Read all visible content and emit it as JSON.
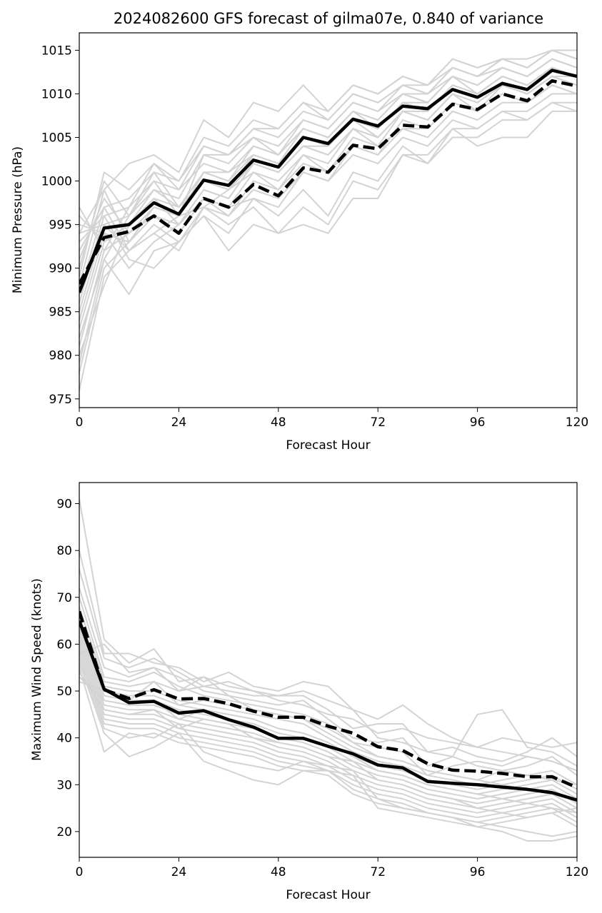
{
  "title": "2024082600 GFS forecast of gilma07e, 0.840 of variance",
  "colors": {
    "members": "#d3d3d3",
    "highlight": "#000000"
  },
  "chart_data": [
    {
      "type": "line",
      "xlabel": "Forecast Hour",
      "ylabel": "Minimum Pressure (hPa)",
      "xlim": [
        0,
        120
      ],
      "ylim": [
        974,
        1017
      ],
      "xticks": [
        0,
        24,
        48,
        72,
        96,
        120
      ],
      "yticks": [
        975,
        980,
        985,
        990,
        995,
        1000,
        1005,
        1010,
        1015
      ],
      "x": [
        0,
        6,
        12,
        18,
        24,
        30,
        36,
        42,
        48,
        54,
        60,
        66,
        72,
        78,
        84,
        90,
        96,
        102,
        108,
        114,
        120
      ],
      "series": [
        {
          "style": "solid",
          "values": [
            987.2,
            994.6,
            995,
            997.5,
            996.2,
            1000.1,
            999.5,
            1002.4,
            1001.6,
            1005,
            1004.3,
            1007.1,
            1006.3,
            1008.6,
            1008.3,
            1010.5,
            1009.6,
            1011.2,
            1010.5,
            1012.7,
            1012
          ]
        },
        {
          "style": "dashed",
          "values": [
            988.2,
            993.5,
            994.2,
            996,
            994,
            998,
            997,
            999.6,
            998.3,
            1001.5,
            1001,
            1004.1,
            1003.7,
            1006.4,
            1006.2,
            1008.8,
            1008.2,
            1010,
            1009.2,
            1011.5,
            1010.9
          ]
        }
      ],
      "members": [
        [
          976,
          989,
          992,
          994,
          996,
          997,
          999,
          1001,
          1000,
          1003,
          1001,
          1004,
          1003,
          1006,
          1005,
          1008,
          1007,
          1009,
          1009,
          1011,
          1010
        ],
        [
          978,
          990,
          993,
          996,
          995,
          999,
          998,
          1002,
          1001,
          1004,
          1003,
          1006,
          1005,
          1008,
          1007,
          1010,
          1009,
          1011,
          1010,
          1012,
          1011
        ],
        [
          979,
          991,
          987,
          992,
          993,
          997,
          996,
          999,
          998,
          1001,
          1000,
          1003,
          1002,
          1005,
          1004,
          1007,
          1006,
          1008,
          1008,
          1010,
          1010
        ],
        [
          981,
          992,
          994,
          997,
          996,
          1000,
          999,
          1003,
          1002,
          1005,
          1004,
          1007,
          1006,
          1009,
          1008,
          1011,
          1010,
          1012,
          1011,
          1013,
          1012
        ],
        [
          983,
          993,
          995,
          998,
          997,
          1001,
          1000,
          1004,
          1003,
          1006,
          1005,
          1008,
          1007,
          1010,
          1009,
          1012,
          1011,
          1013,
          1012,
          1014,
          1013
        ],
        [
          984,
          994,
          990,
          993,
          995,
          998,
          997,
          1001,
          999,
          1002,
          1001,
          1005,
          1004,
          1006,
          1006,
          1009,
          1008,
          1010,
          1009,
          1011,
          1010
        ],
        [
          985,
          995,
          996,
          999,
          998,
          1003,
          1002,
          1005,
          1004,
          1007,
          1006,
          1009,
          1008,
          1011,
          1010,
          1013,
          1012,
          1014,
          1013,
          1015,
          1014
        ],
        [
          986,
          996,
          997,
          1000,
          999,
          1004,
          1003,
          1006,
          1005,
          1008,
          1007,
          1010,
          1009,
          1011,
          1011,
          1013,
          1012,
          1014,
          1013,
          1015,
          1014
        ],
        [
          987,
          997,
          998,
          1001,
          1000,
          1005,
          1004,
          1007,
          1006,
          1009,
          1008,
          1011,
          1010,
          1012,
          1011,
          1014,
          1013,
          1014,
          1014,
          1015,
          1015
        ],
        [
          988,
          999,
          1002,
          1003,
          1001,
          1007,
          1005,
          1009,
          1008,
          1011,
          1008,
          1011,
          1010,
          1012,
          1011,
          1014,
          1013,
          1014,
          1013,
          1015,
          1014
        ],
        [
          989,
          1001,
          999,
          1002,
          1000,
          1004,
          1003,
          1006,
          1006,
          1009,
          1007,
          1010,
          1009,
          1011,
          1010,
          1013,
          1012,
          1013,
          1012,
          1014,
          1013
        ],
        [
          990,
          1000,
          996,
          1001,
          997,
          1001,
          1000,
          1003,
          1002,
          1006,
          1005,
          1008,
          1006,
          1009,
          1009,
          1012,
          1010,
          1012,
          1011,
          1013,
          1012
        ],
        [
          991,
          998,
          994,
          996,
          994,
          998,
          996,
          1000,
          999,
          1003,
          1002,
          1006,
          1004,
          1008,
          1007,
          1010,
          1008,
          1011,
          1010,
          1012,
          1011
        ],
        [
          992,
          997,
          992,
          995,
          993,
          996,
          994,
          998,
          997,
          1001,
          1000,
          1004,
          1003,
          1007,
          1006,
          1009,
          1008,
          1010,
          1009,
          1011,
          1010
        ],
        [
          993,
          996,
          991,
          990,
          993,
          996,
          992,
          995,
          994,
          997,
          995,
          1000,
          999,
          1003,
          1002,
          1005,
          1005,
          1007,
          1007,
          1009,
          1008
        ],
        [
          994,
          995,
          992,
          994,
          992,
          997,
          995,
          997,
          994,
          995,
          994,
          998,
          998,
          1003,
          1003,
          1006,
          1004,
          1005,
          1005,
          1008,
          1008
        ],
        [
          995,
          994,
          993,
          996,
          994,
          998,
          997,
          998,
          996,
          999,
          996,
          1001,
          1000,
          1004,
          1002,
          1006,
          1006,
          1008,
          1007,
          1009,
          1009
        ],
        [
          996,
          993,
          995,
          999,
          997,
          1000,
          999,
          1002,
          1001,
          1004,
          1003,
          1006,
          1005,
          1008,
          1007,
          1010,
          1009,
          1011,
          1010,
          1012,
          1012
        ],
        [
          997,
          992,
          997,
          1002,
          999,
          1002,
          1001,
          1004,
          1003,
          1006,
          1005,
          1008,
          1007,
          1010,
          1009,
          1012,
          1011,
          1013,
          1012,
          1014,
          1013
        ],
        [
          994,
          999,
          993,
          997,
          996,
          1001,
          1001,
          1003,
          1002,
          1005,
          1004,
          1007,
          1005,
          1008,
          1008,
          1011,
          1010,
          1012,
          1011,
          1013,
          1012
        ],
        [
          982,
          991,
          996,
          1000,
          996,
          1003,
          1003,
          1005,
          1003,
          1007,
          1006,
          1009,
          1008,
          1010,
          1010,
          1012,
          1011,
          1013,
          1012,
          1014,
          1013
        ],
        [
          980,
          988,
          995,
          998,
          995,
          999,
          998,
          1002,
          1001,
          1004,
          1004,
          1007,
          1006,
          1009,
          1008,
          1011,
          1010,
          1012,
          1011,
          1013,
          1012
        ]
      ]
    },
    {
      "type": "line",
      "xlabel": "Forecast Hour",
      "ylabel": "Maximum Wind Speed (knots)",
      "xlim": [
        0,
        120
      ],
      "ylim": [
        14.5,
        94.5
      ],
      "xticks": [
        0,
        24,
        48,
        72,
        96,
        120
      ],
      "yticks": [
        20,
        30,
        40,
        50,
        60,
        70,
        80,
        90
      ],
      "x": [
        0,
        6,
        12,
        18,
        24,
        30,
        36,
        42,
        48,
        54,
        60,
        66,
        72,
        78,
        84,
        90,
        96,
        102,
        108,
        114,
        120
      ],
      "series": [
        {
          "style": "solid",
          "values": [
            65,
            50.4,
            47.5,
            47.8,
            45.3,
            45.8,
            43.9,
            42.3,
            39.9,
            39.9,
            38.2,
            36.6,
            34.2,
            33.6,
            30.7,
            30.3,
            30,
            29.5,
            29,
            28.3,
            26.7
          ]
        },
        {
          "style": "dashed",
          "values": [
            67,
            50.3,
            48.4,
            50.3,
            48.3,
            48.4,
            47.3,
            45.7,
            44.4,
            44.4,
            42.5,
            41,
            38.1,
            37.3,
            34.5,
            33.1,
            32.9,
            32.4,
            31.7,
            31.7,
            29.4
          ]
        }
      ],
      "members": [
        [
          91,
          61,
          56,
          59,
          52,
          53,
          51,
          50,
          48,
          47,
          45,
          44,
          41,
          42,
          40,
          39,
          38,
          37,
          36,
          35,
          33
        ],
        [
          80,
          58,
          58,
          56,
          55,
          52,
          54,
          51,
          50,
          52,
          51,
          46,
          44,
          47,
          43,
          40,
          38,
          40,
          39,
          38,
          39
        ],
        [
          76,
          57,
          55,
          57,
          54,
          51,
          52,
          50,
          49,
          49,
          46,
          42,
          43,
          43,
          37,
          38,
          36,
          35,
          37,
          40,
          36
        ],
        [
          72,
          55,
          53,
          55,
          53,
          50,
          49,
          48,
          47,
          48,
          44,
          40,
          39,
          40,
          34,
          36,
          45,
          46,
          38,
          37,
          34
        ],
        [
          70,
          53,
          52,
          54,
          51,
          49,
          48,
          47,
          46,
          45,
          43,
          39,
          38,
          37,
          32,
          34,
          35,
          34,
          36,
          35,
          33
        ],
        [
          68,
          52,
          51,
          52,
          50,
          53,
          49,
          46,
          45,
          44,
          41,
          38,
          36,
          35,
          33,
          32,
          31,
          33,
          34,
          36,
          32
        ],
        [
          66,
          51,
          50,
          50,
          48,
          47,
          46,
          45,
          44,
          43,
          40,
          37,
          35,
          34,
          32,
          31,
          30,
          31,
          32,
          33,
          30
        ],
        [
          65,
          50,
          49,
          49,
          47,
          46,
          45,
          44,
          42,
          41,
          39,
          36,
          34,
          33,
          31,
          30,
          29,
          30,
          31,
          32,
          29
        ],
        [
          64,
          49,
          48,
          48,
          46,
          45,
          44,
          43,
          41,
          40,
          38,
          35,
          33,
          32,
          30,
          29,
          28,
          29,
          30,
          31,
          28
        ],
        [
          63,
          48,
          47,
          47,
          45,
          44,
          43,
          42,
          40,
          39,
          37,
          34,
          32,
          31,
          29,
          28,
          27,
          28,
          29,
          30,
          27
        ],
        [
          62,
          47,
          46,
          46,
          44,
          43,
          42,
          41,
          39,
          38,
          36,
          33,
          31,
          30,
          28,
          27,
          26,
          27,
          28,
          29,
          26
        ],
        [
          61,
          46,
          45,
          45,
          43,
          42,
          41,
          40,
          38,
          37,
          35,
          32,
          30,
          29,
          27,
          26,
          25,
          26,
          27,
          28,
          25
        ],
        [
          60,
          45,
          44,
          44,
          42,
          41,
          40,
          39,
          37,
          36,
          34,
          31,
          29,
          28,
          26,
          25,
          24,
          25,
          26,
          27,
          24
        ],
        [
          59,
          44,
          43,
          43,
          41,
          40,
          39,
          38,
          36,
          35,
          33,
          30,
          28,
          27,
          25,
          24,
          23,
          24,
          25,
          26,
          23
        ],
        [
          58,
          43,
          42,
          42,
          40,
          39,
          38,
          37,
          35,
          34,
          33,
          29,
          27,
          26,
          24,
          23,
          22,
          23,
          24,
          25,
          22
        ],
        [
          57,
          42,
          40,
          41,
          39,
          38,
          37,
          36,
          34,
          33,
          32,
          28,
          26,
          25,
          24,
          23,
          21,
          22,
          23,
          24,
          21
        ],
        [
          56,
          41,
          36,
          38,
          41,
          35,
          33,
          31,
          30,
          33,
          33,
          32,
          25,
          24,
          23,
          22,
          21,
          20,
          18,
          18,
          19
        ],
        [
          55,
          37,
          41,
          40,
          43,
          37,
          35,
          34,
          33,
          35,
          34,
          33,
          27,
          25,
          24,
          23,
          22,
          21,
          20,
          19,
          20
        ],
        [
          54,
          46,
          45,
          46,
          42,
          44,
          43,
          40,
          39,
          38,
          36,
          35,
          31,
          30,
          28,
          27,
          25,
          24,
          23,
          24,
          25
        ],
        [
          53,
          48,
          47,
          48,
          44,
          46,
          45,
          44,
          42,
          41,
          39,
          36,
          33,
          32,
          30,
          29,
          28,
          27,
          26,
          25,
          24
        ],
        [
          52,
          50,
          48,
          52,
          47,
          48,
          47,
          46,
          45,
          44,
          42,
          39,
          36,
          35,
          33,
          32,
          31,
          30,
          29,
          28,
          27
        ],
        [
          58,
          60,
          54,
          55,
          50,
          51,
          50,
          49,
          49,
          50,
          48,
          46,
          40,
          39,
          37,
          36,
          34,
          33,
          32,
          31,
          30
        ]
      ]
    }
  ]
}
